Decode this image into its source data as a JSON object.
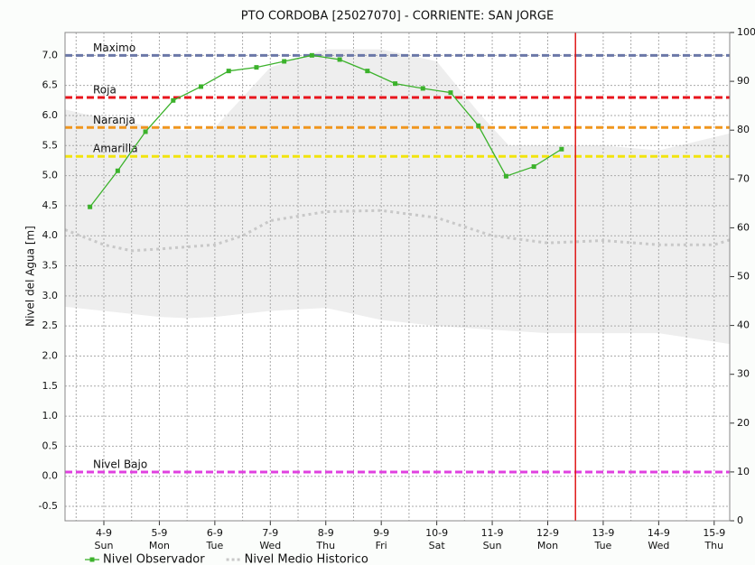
{
  "chart_data": {
    "type": "line",
    "title": "PTO CORDOBA   [25027070] - CORRIENTE: SAN JORGE",
    "y_label": "Nivel del Agua [m]",
    "xlim": [
      3.3,
      15.28
    ],
    "xticks": [
      {
        "value": 4,
        "label": "4-9"
      },
      {
        "value": 5,
        "label": "5-9"
      },
      {
        "value": 6,
        "label": "6-9"
      },
      {
        "value": 7,
        "label": "7-9"
      },
      {
        "value": 8,
        "label": "8-9"
      },
      {
        "value": 9,
        "label": "9-9"
      },
      {
        "value": 10,
        "label": "10-9"
      },
      {
        "value": 11,
        "label": "11-9"
      },
      {
        "value": 12,
        "label": "12-9"
      },
      {
        "value": 13,
        "label": "13-9"
      },
      {
        "value": 14,
        "label": "14-9"
      },
      {
        "value": 15,
        "label": "15-9"
      }
    ],
    "xtick_days": [
      "Sun",
      "Mon",
      "Tue",
      "Wed",
      "Thu",
      "Fri",
      "Sat",
      "Sun",
      "Mon",
      "Tue",
      "Wed",
      "Thu"
    ],
    "xgrid_minor": [
      3.5,
      4.5,
      5.5,
      6.5,
      7.5,
      8.5,
      9.5,
      10.5,
      11.5,
      12.5,
      13.5,
      14.5
    ],
    "ylim": [
      -0.74,
      7.38
    ],
    "yticks": [
      -0.5,
      {
        "value": 0,
        "label": "0.0"
      },
      0.5,
      {
        "value": 1,
        "label": "1.0"
      },
      1.5,
      {
        "value": 2,
        "label": "2.0"
      },
      2.5,
      {
        "value": 3,
        "label": "3.0"
      },
      3.5,
      {
        "value": 4,
        "label": "4.0"
      },
      4.5,
      {
        "value": 5,
        "label": "5.0"
      },
      5.5,
      {
        "value": 6,
        "label": "6.0"
      },
      6.5,
      {
        "value": 7,
        "label": "7.0"
      }
    ],
    "y2lim": [
      0,
      100
    ],
    "y2ticks": [
      0,
      10,
      20,
      30,
      40,
      50,
      60,
      70,
      80,
      90,
      100
    ],
    "grid": true,
    "band": {
      "color": "#eeeeee",
      "x": [
        3.3,
        4,
        5,
        5.5,
        6,
        6.5,
        7,
        8,
        9,
        10,
        10.8,
        11.3,
        12,
        13,
        14,
        15.28
      ],
      "upper": [
        6.1,
        5.95,
        5.8,
        5.75,
        5.8,
        6.3,
        6.8,
        7.1,
        7.1,
        6.9,
        6.0,
        5.5,
        5.5,
        5.5,
        5.42,
        5.7
      ],
      "lower": [
        2.82,
        2.75,
        2.65,
        2.63,
        2.65,
        2.7,
        2.75,
        2.8,
        2.6,
        2.5,
        2.45,
        2.42,
        2.38,
        2.38,
        2.38,
        2.2
      ]
    },
    "thresholds": [
      {
        "name": "Maximo",
        "value": 7.0,
        "color": "#6b78a8"
      },
      {
        "name": "Roja",
        "value": 6.3,
        "color": "#e8141c"
      },
      {
        "name": "Naranja",
        "value": 5.8,
        "color": "#f0961e"
      },
      {
        "name": "Amarilla",
        "value": 5.32,
        "color": "#f2e40c"
      },
      {
        "name": "Nivel Bajo",
        "value": 0.07,
        "color": "#e040e0"
      }
    ],
    "vline_x": 12.5,
    "vline_color": "#e01818",
    "series": [
      {
        "name": "Nivel Observador",
        "color": "#3cb22c",
        "markers": true,
        "x": [
          3.75,
          4.25,
          4.75,
          5.25,
          5.75,
          6.25,
          6.75,
          7.25,
          7.75,
          8.25,
          8.75,
          9.25,
          9.75,
          10.25,
          10.75,
          11.25,
          11.75,
          12.25
        ],
        "values": [
          4.48,
          5.08,
          5.73,
          6.25,
          6.48,
          6.74,
          6.8,
          6.9,
          7.0,
          6.93,
          6.74,
          6.53,
          6.45,
          6.38,
          5.83,
          4.99,
          5.15,
          5.44
        ]
      },
      {
        "name": "Nivel Medio Historico",
        "color": "#c8c8c8",
        "dotted": true,
        "x": [
          3.3,
          4,
          4.5,
          5,
          6,
          6.5,
          7,
          8,
          9,
          10,
          11,
          12,
          13,
          14,
          15,
          15.28
        ],
        "values": [
          4.1,
          3.85,
          3.75,
          3.78,
          3.85,
          4.0,
          4.25,
          4.4,
          4.42,
          4.3,
          4.0,
          3.88,
          3.92,
          3.85,
          3.85,
          3.93
        ]
      }
    ]
  }
}
